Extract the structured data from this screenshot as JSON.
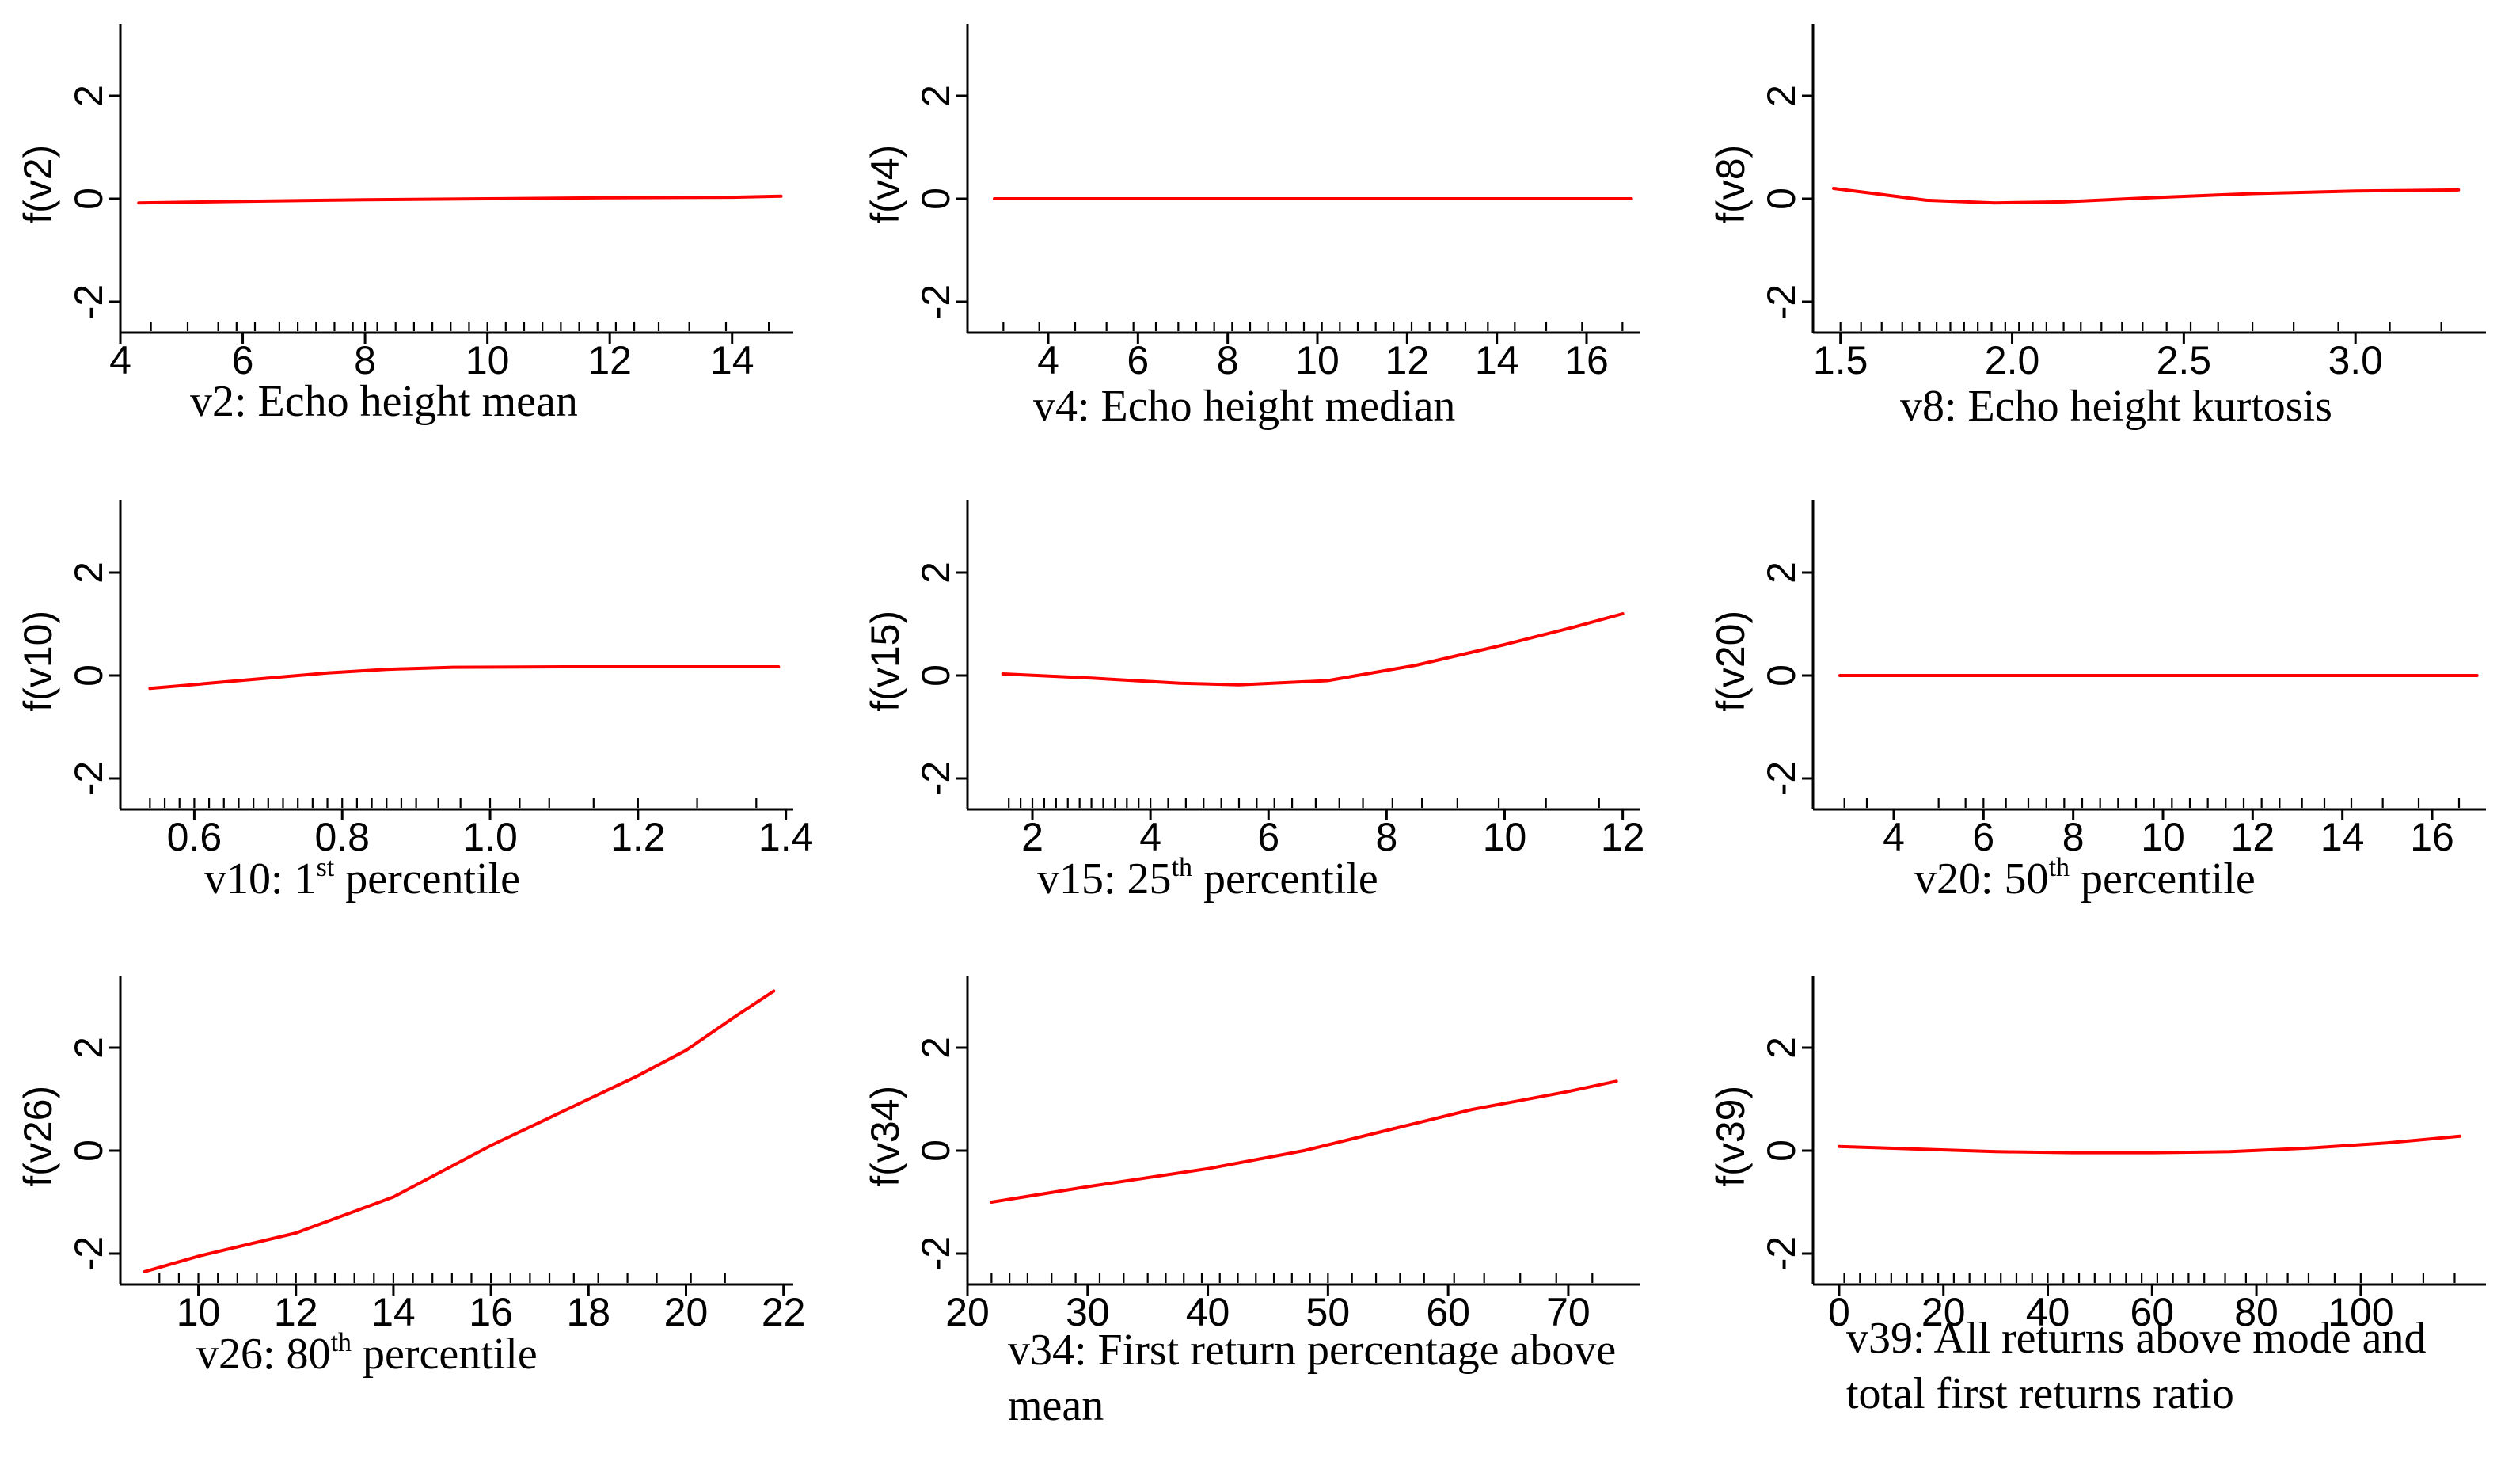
{
  "colors": {
    "curve": "#ff0000",
    "axis": "#000000",
    "background": "#ffffff"
  },
  "chart_data": [
    {
      "type": "line",
      "ylabel": "f(v2)",
      "caption": {
        "text": "v2: Echo height mean"
      },
      "xlim": [
        4,
        15
      ],
      "xticks": [
        4,
        6,
        8,
        10,
        12,
        14
      ],
      "ylim": [
        -2.6,
        3.4
      ],
      "yticks": [
        -2,
        0,
        2
      ],
      "series": [
        {
          "name": "f(v2)",
          "x": [
            4.3,
            6,
            8,
            10,
            12,
            14,
            14.8
          ],
          "y": [
            -0.08,
            -0.05,
            -0.02,
            0.0,
            0.02,
            0.03,
            0.05
          ]
        }
      ],
      "rug": [
        4.5,
        5.1,
        5.6,
        5.9,
        6.2,
        6.6,
        6.9,
        7.2,
        7.5,
        7.8,
        8.0,
        8.2,
        8.5,
        8.8,
        9.1,
        9.4,
        9.7,
        10.0,
        10.3,
        10.6,
        10.9,
        11.2,
        11.5,
        11.8,
        12.1,
        12.4,
        12.8,
        13.3,
        13.9,
        14.6
      ]
    },
    {
      "type": "line",
      "ylabel": "f(v4)",
      "caption": {
        "text": "v4: Echo height median"
      },
      "xlim": [
        2.2,
        17.2
      ],
      "xticks": [
        4,
        6,
        8,
        10,
        12,
        14,
        16
      ],
      "ylim": [
        -2.6,
        3.4
      ],
      "yticks": [
        -2,
        0,
        2
      ],
      "series": [
        {
          "name": "f(v4)",
          "x": [
            2.8,
            17.0
          ],
          "y": [
            0.0,
            0.0
          ]
        }
      ],
      "rug": [
        3.0,
        3.8,
        4.6,
        5.3,
        5.9,
        6.4,
        6.9,
        7.3,
        7.7,
        8.1,
        8.5,
        8.9,
        9.3,
        9.7,
        10.1,
        10.5,
        10.9,
        11.3,
        11.7,
        12.1,
        12.5,
        12.9,
        13.3,
        13.8,
        14.4,
        15.1,
        15.9,
        16.8
      ]
    },
    {
      "type": "line",
      "ylabel": "f(v8)",
      "caption": {
        "text": "v8: Echo height kurtosis"
      },
      "xlim": [
        1.42,
        3.38
      ],
      "xticks": [
        1.5,
        2.0,
        2.5,
        3.0
      ],
      "xtick_labels": [
        "1.5",
        "2.0",
        "2.5",
        "3.0"
      ],
      "ylim": [
        -2.6,
        3.4
      ],
      "yticks": [
        -2,
        0,
        2
      ],
      "series": [
        {
          "name": "f(v8)",
          "x": [
            1.48,
            1.6,
            1.75,
            1.95,
            2.15,
            2.4,
            2.7,
            3.0,
            3.3
          ],
          "y": [
            0.2,
            0.1,
            -0.03,
            -0.08,
            -0.06,
            0.02,
            0.1,
            0.15,
            0.17
          ]
        }
      ],
      "rug": [
        1.5,
        1.56,
        1.62,
        1.68,
        1.73,
        1.78,
        1.82,
        1.86,
        1.9,
        1.94,
        1.98,
        2.02,
        2.06,
        2.1,
        2.15,
        2.2,
        2.26,
        2.32,
        2.38,
        2.45,
        2.52,
        2.6,
        2.7,
        2.82,
        2.95,
        3.1,
        3.25
      ]
    },
    {
      "type": "line",
      "ylabel": "f(v10)",
      "caption": {
        "text": "v10: 1",
        "sup": "st",
        "suffix": " percentile"
      },
      "xlim": [
        0.5,
        1.41
      ],
      "xticks": [
        0.6,
        0.8,
        1.0,
        1.2,
        1.4
      ],
      "xtick_labels": [
        "0.6",
        "0.8",
        "1.0",
        "1.2",
        "1.4"
      ],
      "ylim": [
        -2.6,
        3.4
      ],
      "yticks": [
        -2,
        0,
        2
      ],
      "series": [
        {
          "name": "f(v10)",
          "x": [
            0.54,
            0.62,
            0.7,
            0.78,
            0.86,
            0.95,
            1.1,
            1.25,
            1.39
          ],
          "y": [
            -0.25,
            -0.15,
            -0.05,
            0.05,
            0.12,
            0.16,
            0.17,
            0.17,
            0.17
          ]
        }
      ],
      "rug": [
        0.54,
        0.56,
        0.58,
        0.6,
        0.62,
        0.64,
        0.66,
        0.68,
        0.7,
        0.72,
        0.74,
        0.76,
        0.78,
        0.8,
        0.82,
        0.84,
        0.86,
        0.88,
        0.9,
        0.93,
        0.96,
        1.0,
        1.04,
        1.08,
        1.14,
        1.2,
        1.28,
        1.36
      ]
    },
    {
      "type": "line",
      "ylabel": "f(v15)",
      "caption": {
        "text": "v15: 25",
        "sup": "th",
        "suffix": " percentile"
      },
      "xlim": [
        0.9,
        12.3
      ],
      "xticks": [
        2,
        4,
        6,
        8,
        10,
        12
      ],
      "ylim": [
        -2.6,
        3.4
      ],
      "yticks": [
        -2,
        0,
        2
      ],
      "series": [
        {
          "name": "f(v15)",
          "x": [
            1.5,
            3,
            4.5,
            5.5,
            7,
            8.5,
            10,
            11.2,
            12.0
          ],
          "y": [
            0.03,
            -0.05,
            -0.15,
            -0.18,
            -0.1,
            0.2,
            0.6,
            0.95,
            1.2
          ]
        }
      ],
      "rug": [
        1.6,
        1.8,
        2.0,
        2.2,
        2.4,
        2.6,
        2.8,
        3.0,
        3.2,
        3.4,
        3.6,
        3.8,
        4.0,
        4.3,
        4.6,
        4.9,
        5.2,
        5.5,
        5.8,
        6.1,
        6.4,
        6.8,
        7.2,
        7.6,
        8.1,
        8.6,
        9.2,
        9.9,
        10.7,
        11.6
      ]
    },
    {
      "type": "line",
      "ylabel": "f(v20)",
      "caption": {
        "text": "v20: 50",
        "sup": "th",
        "suffix": " percentile"
      },
      "xlim": [
        2.2,
        17.2
      ],
      "xticks": [
        4,
        6,
        8,
        10,
        12,
        14,
        16
      ],
      "ylim": [
        -2.6,
        3.4
      ],
      "yticks": [
        -2,
        0,
        2
      ],
      "series": [
        {
          "name": "f(v20)",
          "x": [
            2.8,
            17.0
          ],
          "y": [
            0.0,
            0.0
          ]
        }
      ],
      "rug": [
        2.9,
        3.4,
        5.0,
        5.6,
        6.0,
        6.5,
        7.0,
        7.4,
        7.8,
        8.2,
        8.6,
        9.0,
        9.4,
        9.8,
        10.2,
        10.6,
        11.0,
        11.4,
        11.8,
        12.2,
        12.6,
        13.1,
        13.6,
        14.2,
        14.9,
        15.7,
        16.6
      ]
    },
    {
      "type": "line",
      "ylabel": "f(v26)",
      "caption": {
        "text": "v26: 80",
        "sup": "th",
        "suffix": " percentile"
      },
      "xlim": [
        8.4,
        22.2
      ],
      "xticks": [
        10,
        12,
        14,
        16,
        18,
        20,
        22
      ],
      "ylim": [
        -2.6,
        3.4
      ],
      "yticks": [
        -2,
        0,
        2
      ],
      "series": [
        {
          "name": "f(v26)",
          "x": [
            8.9,
            10,
            12,
            14,
            15,
            16,
            17,
            18,
            19,
            20,
            21,
            21.8
          ],
          "y": [
            -2.35,
            -2.05,
            -1.6,
            -0.9,
            -0.4,
            0.1,
            0.55,
            1.0,
            1.45,
            1.95,
            2.6,
            3.1
          ]
        }
      ],
      "rug": [
        9.2,
        9.6,
        10.0,
        10.4,
        10.8,
        11.2,
        11.6,
        12.0,
        12.4,
        12.8,
        13.2,
        13.6,
        14.0,
        14.4,
        14.8,
        15.2,
        15.6,
        16.0,
        16.4,
        16.8,
        17.2,
        17.7,
        18.2,
        18.8,
        19.4,
        20.1,
        20.8
      ]
    },
    {
      "type": "line",
      "ylabel": "f(v34)",
      "caption": {
        "text": "v34: First return percentage above",
        "line2": "mean"
      },
      "xlim": [
        20,
        76
      ],
      "xticks": [
        20,
        30,
        40,
        50,
        60,
        70
      ],
      "ylim": [
        -2.6,
        3.4
      ],
      "yticks": [
        -2,
        0,
        2
      ],
      "series": [
        {
          "name": "f(v34)",
          "x": [
            22,
            30,
            40,
            48,
            55,
            62,
            70,
            74
          ],
          "y": [
            -1.0,
            -0.7,
            -0.35,
            0.0,
            0.4,
            0.8,
            1.15,
            1.35
          ]
        }
      ],
      "rug": [
        22,
        23.5,
        25,
        27,
        29,
        31,
        33,
        35,
        36.5,
        38,
        39.5,
        41,
        42.5,
        44,
        45.5,
        47,
        48.5,
        50,
        52,
        54,
        56,
        58,
        60.5,
        63,
        66,
        69,
        72
      ]
    },
    {
      "type": "line",
      "ylabel": "f(v39)",
      "caption": {
        "text": "v39: All returns above mode and",
        "line2": "total first returns ratio"
      },
      "xlim": [
        -5,
        124
      ],
      "xticks": [
        0,
        20,
        40,
        60,
        80,
        100
      ],
      "ylim": [
        -2.6,
        3.4
      ],
      "yticks": [
        -2,
        0,
        2
      ],
      "series": [
        {
          "name": "f(v39)",
          "x": [
            0,
            15,
            30,
            45,
            60,
            75,
            90,
            105,
            119
          ],
          "y": [
            0.08,
            0.03,
            -0.02,
            -0.04,
            -0.04,
            -0.02,
            0.05,
            0.15,
            0.28
          ]
        }
      ],
      "rug": [
        1,
        4,
        7,
        10,
        13,
        16,
        19,
        22,
        25,
        28,
        31,
        34,
        37,
        40,
        43,
        46,
        49,
        52,
        55,
        58,
        61,
        64,
        67,
        70,
        74,
        78,
        82,
        86,
        90,
        95,
        100,
        106,
        112,
        118
      ]
    }
  ]
}
